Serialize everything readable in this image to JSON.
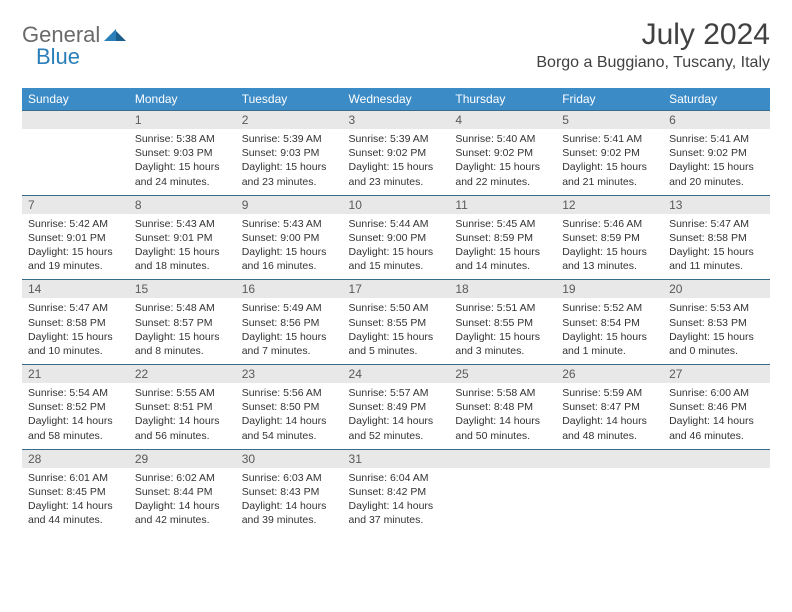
{
  "logo": {
    "general": "General",
    "blue": "Blue"
  },
  "title": "July 2024",
  "location": "Borgo a Buggiano, Tuscany, Italy",
  "colors": {
    "header_bg": "#3b8bc7",
    "header_text": "#ffffff",
    "daynum_bg": "#e8e8e8",
    "daynum_text": "#5a5a5a",
    "body_text": "#333333",
    "border": "#d0d0d0",
    "top_border": "#3b6b8a",
    "logo_gray": "#6a6a6a",
    "logo_blue": "#2a7fba"
  },
  "day_names": [
    "Sunday",
    "Monday",
    "Tuesday",
    "Wednesday",
    "Thursday",
    "Friday",
    "Saturday"
  ],
  "weeks": [
    {
      "nums": [
        "",
        "1",
        "2",
        "3",
        "4",
        "5",
        "6"
      ],
      "cells": [
        {},
        {
          "sunrise": "Sunrise: 5:38 AM",
          "sunset": "Sunset: 9:03 PM",
          "day1": "Daylight: 15 hours",
          "day2": "and 24 minutes."
        },
        {
          "sunrise": "Sunrise: 5:39 AM",
          "sunset": "Sunset: 9:03 PM",
          "day1": "Daylight: 15 hours",
          "day2": "and 23 minutes."
        },
        {
          "sunrise": "Sunrise: 5:39 AM",
          "sunset": "Sunset: 9:02 PM",
          "day1": "Daylight: 15 hours",
          "day2": "and 23 minutes."
        },
        {
          "sunrise": "Sunrise: 5:40 AM",
          "sunset": "Sunset: 9:02 PM",
          "day1": "Daylight: 15 hours",
          "day2": "and 22 minutes."
        },
        {
          "sunrise": "Sunrise: 5:41 AM",
          "sunset": "Sunset: 9:02 PM",
          "day1": "Daylight: 15 hours",
          "day2": "and 21 minutes."
        },
        {
          "sunrise": "Sunrise: 5:41 AM",
          "sunset": "Sunset: 9:02 PM",
          "day1": "Daylight: 15 hours",
          "day2": "and 20 minutes."
        }
      ]
    },
    {
      "nums": [
        "7",
        "8",
        "9",
        "10",
        "11",
        "12",
        "13"
      ],
      "cells": [
        {
          "sunrise": "Sunrise: 5:42 AM",
          "sunset": "Sunset: 9:01 PM",
          "day1": "Daylight: 15 hours",
          "day2": "and 19 minutes."
        },
        {
          "sunrise": "Sunrise: 5:43 AM",
          "sunset": "Sunset: 9:01 PM",
          "day1": "Daylight: 15 hours",
          "day2": "and 18 minutes."
        },
        {
          "sunrise": "Sunrise: 5:43 AM",
          "sunset": "Sunset: 9:00 PM",
          "day1": "Daylight: 15 hours",
          "day2": "and 16 minutes."
        },
        {
          "sunrise": "Sunrise: 5:44 AM",
          "sunset": "Sunset: 9:00 PM",
          "day1": "Daylight: 15 hours",
          "day2": "and 15 minutes."
        },
        {
          "sunrise": "Sunrise: 5:45 AM",
          "sunset": "Sunset: 8:59 PM",
          "day1": "Daylight: 15 hours",
          "day2": "and 14 minutes."
        },
        {
          "sunrise": "Sunrise: 5:46 AM",
          "sunset": "Sunset: 8:59 PM",
          "day1": "Daylight: 15 hours",
          "day2": "and 13 minutes."
        },
        {
          "sunrise": "Sunrise: 5:47 AM",
          "sunset": "Sunset: 8:58 PM",
          "day1": "Daylight: 15 hours",
          "day2": "and 11 minutes."
        }
      ]
    },
    {
      "nums": [
        "14",
        "15",
        "16",
        "17",
        "18",
        "19",
        "20"
      ],
      "cells": [
        {
          "sunrise": "Sunrise: 5:47 AM",
          "sunset": "Sunset: 8:58 PM",
          "day1": "Daylight: 15 hours",
          "day2": "and 10 minutes."
        },
        {
          "sunrise": "Sunrise: 5:48 AM",
          "sunset": "Sunset: 8:57 PM",
          "day1": "Daylight: 15 hours",
          "day2": "and 8 minutes."
        },
        {
          "sunrise": "Sunrise: 5:49 AM",
          "sunset": "Sunset: 8:56 PM",
          "day1": "Daylight: 15 hours",
          "day2": "and 7 minutes."
        },
        {
          "sunrise": "Sunrise: 5:50 AM",
          "sunset": "Sunset: 8:55 PM",
          "day1": "Daylight: 15 hours",
          "day2": "and 5 minutes."
        },
        {
          "sunrise": "Sunrise: 5:51 AM",
          "sunset": "Sunset: 8:55 PM",
          "day1": "Daylight: 15 hours",
          "day2": "and 3 minutes."
        },
        {
          "sunrise": "Sunrise: 5:52 AM",
          "sunset": "Sunset: 8:54 PM",
          "day1": "Daylight: 15 hours",
          "day2": "and 1 minute."
        },
        {
          "sunrise": "Sunrise: 5:53 AM",
          "sunset": "Sunset: 8:53 PM",
          "day1": "Daylight: 15 hours",
          "day2": "and 0 minutes."
        }
      ]
    },
    {
      "nums": [
        "21",
        "22",
        "23",
        "24",
        "25",
        "26",
        "27"
      ],
      "cells": [
        {
          "sunrise": "Sunrise: 5:54 AM",
          "sunset": "Sunset: 8:52 PM",
          "day1": "Daylight: 14 hours",
          "day2": "and 58 minutes."
        },
        {
          "sunrise": "Sunrise: 5:55 AM",
          "sunset": "Sunset: 8:51 PM",
          "day1": "Daylight: 14 hours",
          "day2": "and 56 minutes."
        },
        {
          "sunrise": "Sunrise: 5:56 AM",
          "sunset": "Sunset: 8:50 PM",
          "day1": "Daylight: 14 hours",
          "day2": "and 54 minutes."
        },
        {
          "sunrise": "Sunrise: 5:57 AM",
          "sunset": "Sunset: 8:49 PM",
          "day1": "Daylight: 14 hours",
          "day2": "and 52 minutes."
        },
        {
          "sunrise": "Sunrise: 5:58 AM",
          "sunset": "Sunset: 8:48 PM",
          "day1": "Daylight: 14 hours",
          "day2": "and 50 minutes."
        },
        {
          "sunrise": "Sunrise: 5:59 AM",
          "sunset": "Sunset: 8:47 PM",
          "day1": "Daylight: 14 hours",
          "day2": "and 48 minutes."
        },
        {
          "sunrise": "Sunrise: 6:00 AM",
          "sunset": "Sunset: 8:46 PM",
          "day1": "Daylight: 14 hours",
          "day2": "and 46 minutes."
        }
      ]
    },
    {
      "nums": [
        "28",
        "29",
        "30",
        "31",
        "",
        "",
        ""
      ],
      "cells": [
        {
          "sunrise": "Sunrise: 6:01 AM",
          "sunset": "Sunset: 8:45 PM",
          "day1": "Daylight: 14 hours",
          "day2": "and 44 minutes."
        },
        {
          "sunrise": "Sunrise: 6:02 AM",
          "sunset": "Sunset: 8:44 PM",
          "day1": "Daylight: 14 hours",
          "day2": "and 42 minutes."
        },
        {
          "sunrise": "Sunrise: 6:03 AM",
          "sunset": "Sunset: 8:43 PM",
          "day1": "Daylight: 14 hours",
          "day2": "and 39 minutes."
        },
        {
          "sunrise": "Sunrise: 6:04 AM",
          "sunset": "Sunset: 8:42 PM",
          "day1": "Daylight: 14 hours",
          "day2": "and 37 minutes."
        },
        {},
        {},
        {}
      ]
    }
  ]
}
